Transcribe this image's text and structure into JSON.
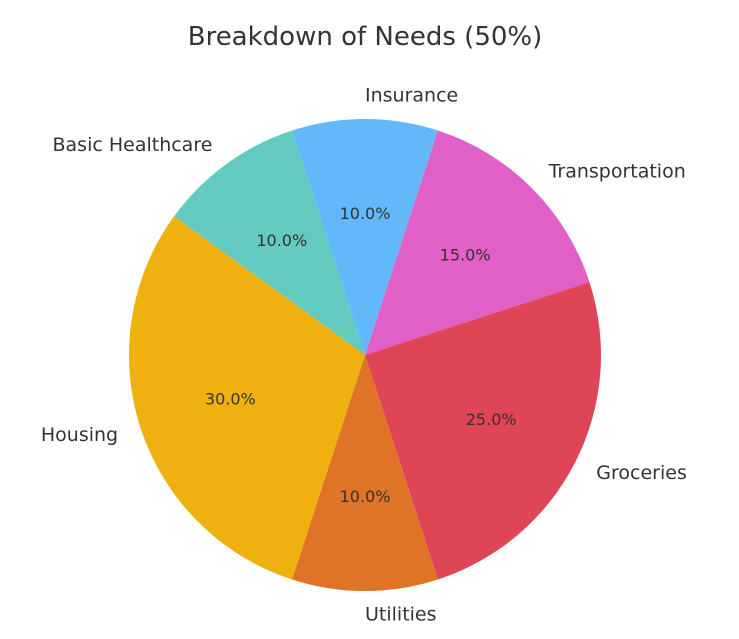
{
  "chart_data": {
    "type": "pie",
    "title": "Breakdown of Needs (50%)",
    "slices": [
      {
        "label": "Insurance",
        "value": 10.0,
        "pct_label": "10.0%",
        "color": "#63b8fa"
      },
      {
        "label": "Transportation",
        "value": 15.0,
        "pct_label": "15.0%",
        "color": "#e160c7"
      },
      {
        "label": "Groceries",
        "value": 25.0,
        "pct_label": "25.0%",
        "color": "#df4457"
      },
      {
        "label": "Utilities",
        "value": 10.0,
        "pct_label": "10.0%",
        "color": "#df7326"
      },
      {
        "label": "Housing",
        "value": 30.0,
        "pct_label": "30.0%",
        "color": "#efb110"
      },
      {
        "label": "Basic Healthcare",
        "value": 10.0,
        "pct_label": "10.0%",
        "color": "#62cabe"
      }
    ],
    "direction": "clockwise",
    "legend": "none"
  }
}
